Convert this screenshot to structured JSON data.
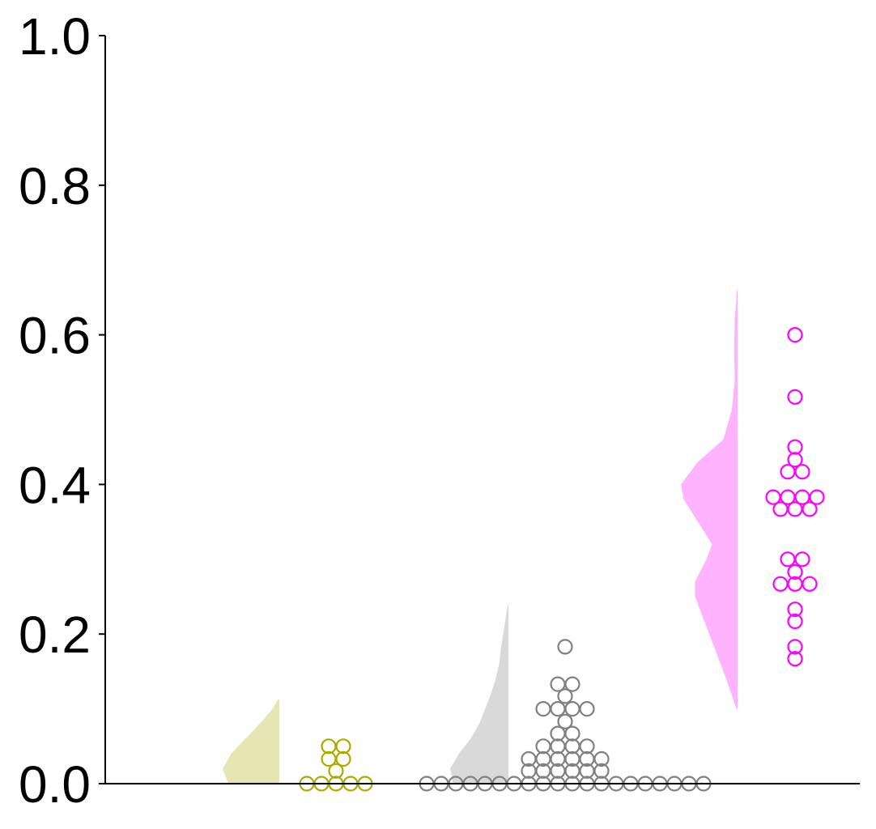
{
  "chart_data": {
    "type": "scatter",
    "style": "half-violin with beeswarm points",
    "ylim": [
      0,
      1.0
    ],
    "yticks": [
      0.0,
      0.2,
      0.4,
      0.6,
      0.8,
      1.0
    ],
    "ytick_labels": [
      "0.0",
      "0.2",
      "0.4",
      "0.6",
      "0.8",
      "1.0"
    ],
    "xlabel": "",
    "ylabel": "",
    "title": "",
    "grid": false,
    "legend": "none",
    "groups": [
      {
        "color": "#aaaa00",
        "violin_color": "#e6e6b3",
        "values": [
          0.0,
          0.0,
          0.0,
          0.0,
          0.0,
          0.017,
          0.033,
          0.033,
          0.05,
          0.05
        ],
        "density": {
          "y": [
            0.0,
            0.02,
            0.04,
            0.06,
            0.08,
            0.1,
            0.113
          ],
          "w": [
            0.9,
            1.0,
            0.85,
            0.6,
            0.35,
            0.12,
            0.02
          ]
        }
      },
      {
        "color": "#808080",
        "violin_color": "#d9d9d9",
        "values": [
          0,
          0,
          0,
          0,
          0,
          0,
          0,
          0,
          0,
          0,
          0,
          0,
          0,
          0,
          0,
          0,
          0,
          0,
          0,
          0,
          0.017,
          0.017,
          0.017,
          0.017,
          0.017,
          0.017,
          0.033,
          0.033,
          0.033,
          0.033,
          0.033,
          0.033,
          0.05,
          0.05,
          0.05,
          0.05,
          0.067,
          0.067,
          0.083,
          0.1,
          0.1,
          0.1,
          0.1,
          0.117,
          0.133,
          0.133,
          0.183
        ],
        "density": {
          "y": [
            0.0,
            0.02,
            0.04,
            0.06,
            0.08,
            0.1,
            0.12,
            0.14,
            0.16,
            0.18,
            0.2,
            0.22,
            0.24
          ],
          "w": [
            0.95,
            1.0,
            0.85,
            0.65,
            0.5,
            0.4,
            0.3,
            0.22,
            0.16,
            0.13,
            0.09,
            0.05,
            0.01
          ]
        }
      },
      {
        "color": "#ff00ff",
        "violin_color": "#ffb3ff",
        "values": [
          0.167,
          0.183,
          0.217,
          0.233,
          0.267,
          0.267,
          0.267,
          0.283,
          0.3,
          0.3,
          0.367,
          0.367,
          0.367,
          0.383,
          0.383,
          0.383,
          0.383,
          0.417,
          0.417,
          0.433,
          0.45,
          0.517,
          0.6
        ],
        "density": {
          "y": [
            0.1,
            0.14,
            0.18,
            0.22,
            0.25,
            0.27,
            0.3,
            0.32,
            0.35,
            0.38,
            0.4,
            0.43,
            0.46,
            0.5,
            0.54,
            0.58,
            0.62,
            0.66
          ],
          "w": [
            0.02,
            0.2,
            0.4,
            0.6,
            0.75,
            0.75,
            0.55,
            0.45,
            0.7,
            0.95,
            1.0,
            0.7,
            0.25,
            0.1,
            0.05,
            0.06,
            0.05,
            0.01
          ]
        }
      }
    ]
  }
}
